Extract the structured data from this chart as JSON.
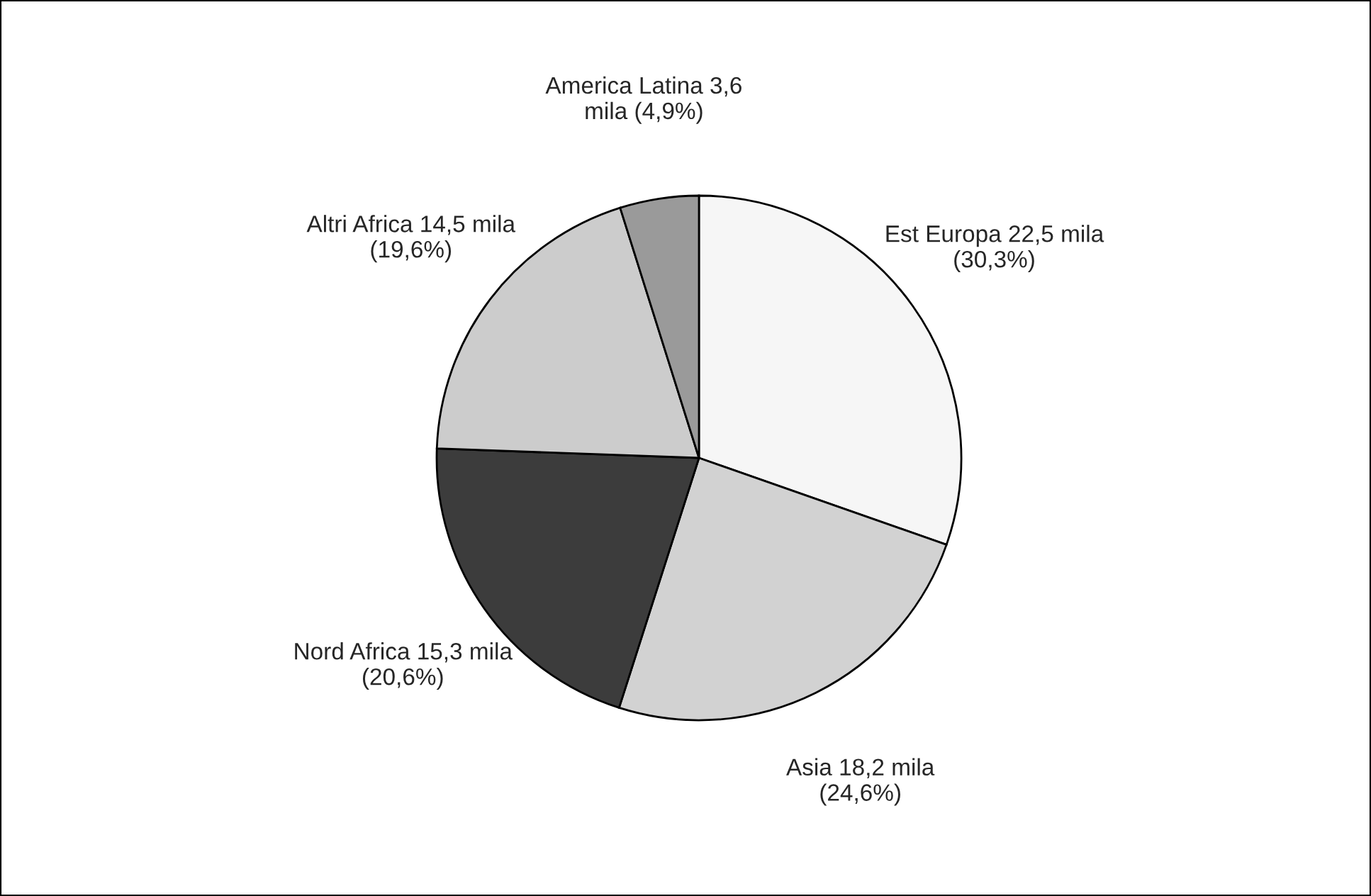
{
  "chart_data": {
    "type": "pie",
    "categories": [
      "Est Europa",
      "Asia",
      "Nord Africa",
      "Altri Africa",
      "America Latina"
    ],
    "values": [
      22.5,
      18.2,
      15.3,
      14.5,
      3.6
    ],
    "value_labels": [
      "22,5 mila\n(30,3%)",
      "18,2 mila\n(24,6%)",
      "15,3 mila\n(20,6%)",
      "14,5 mila\n(19,6%)",
      "3,6\nmila (4,9%)"
    ],
    "colors": [
      "#f6f6f6",
      "#d2d2d2",
      "#3c3c3c",
      "#cccccc",
      "#9a9a9a"
    ],
    "legend": false
  }
}
